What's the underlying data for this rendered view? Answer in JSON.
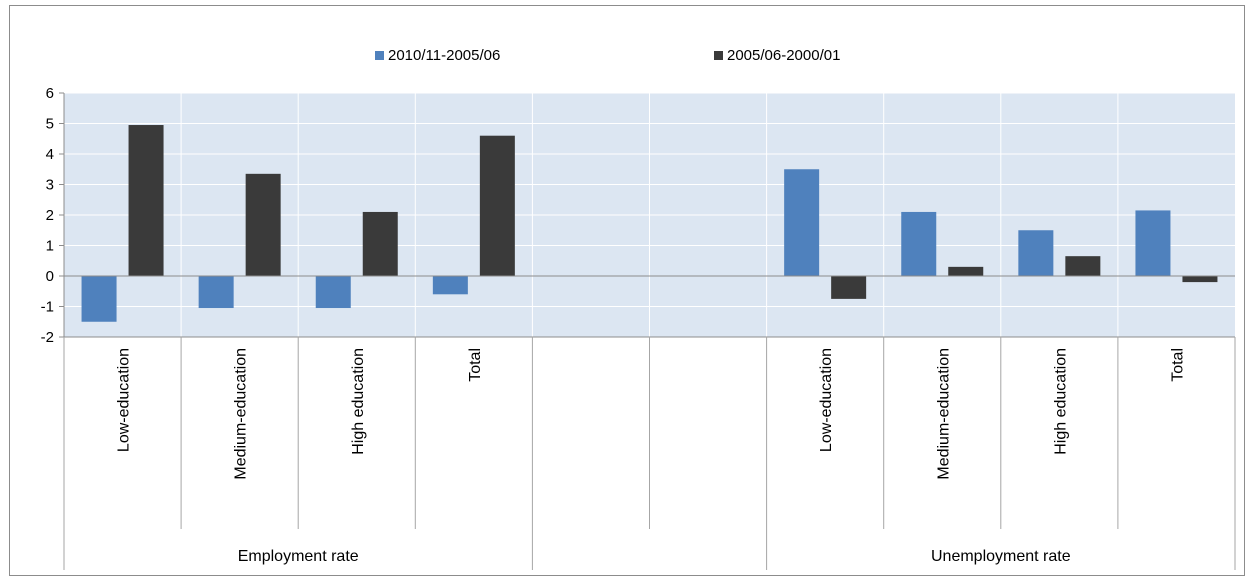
{
  "chart_data": {
    "type": "bar",
    "title": "",
    "xlabel": "",
    "ylabel": "",
    "ylim": [
      -2,
      6
    ],
    "yticks": [
      -2,
      -1,
      0,
      1,
      2,
      3,
      4,
      5,
      6
    ],
    "ytick_labels": [
      "-2",
      "-1",
      "0",
      "1",
      "2",
      "3",
      "4",
      "5",
      "6"
    ],
    "grid": true,
    "legend_position": "top",
    "categories": [
      "Low-education",
      "Medium-education",
      "High education",
      "Total",
      "",
      "",
      "Low-education",
      "Medium-education",
      "High education",
      "Total"
    ],
    "groups": [
      {
        "label": "Employment rate",
        "start": 0,
        "end": 4
      },
      {
        "label": "Unemployment rate",
        "start": 6,
        "end": 10
      }
    ],
    "series": [
      {
        "name": "2010/11-2005/06",
        "color": "#4f81bd",
        "values": [
          -1.5,
          -1.05,
          -1.05,
          -0.6,
          null,
          null,
          3.5,
          2.1,
          1.5,
          2.15
        ]
      },
      {
        "name": "2005/06-2000/01",
        "color": "#3a3a3a",
        "values": [
          4.95,
          3.35,
          2.1,
          4.6,
          null,
          null,
          -0.75,
          0.3,
          0.65,
          -0.2
        ]
      }
    ],
    "plot_background": "#dce6f2",
    "gridline_color": "#ffffff"
  }
}
